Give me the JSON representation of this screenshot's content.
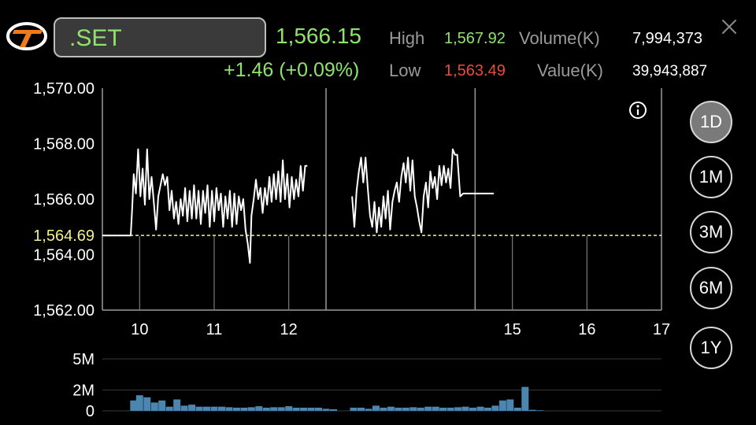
{
  "header": {
    "symbol": ".SET",
    "last_price": "1,566.15",
    "change": "+1.46 (+0.09%)",
    "high_label": "High",
    "high_value": "1,567.92",
    "low_label": "Low",
    "low_value": "1,563.49",
    "volume_label": "Volume(K)",
    "volume_value": "7,994,373",
    "value_label": "Value(K)",
    "value_value": "39,943,887"
  },
  "icons": {
    "logo": "brand-logo-icon",
    "close": "close-icon",
    "info": "info-icon"
  },
  "colors": {
    "up": "#8fe36c",
    "down": "#e74c3c",
    "prev_close_line": "#f5f08a",
    "volume_bar": "#4a86b0",
    "price_line": "#ffffff"
  },
  "range_buttons": [
    {
      "label": "1D",
      "active": true
    },
    {
      "label": "1M",
      "active": false
    },
    {
      "label": "3M",
      "active": false
    },
    {
      "label": "6M",
      "active": false
    },
    {
      "label": "1Y",
      "active": false
    }
  ],
  "chart_data": {
    "type": "line",
    "y_ticks": [
      "1,570.00",
      "1,568.00",
      "1,566.00",
      "1,564.00",
      "1,562.00"
    ],
    "ylim": [
      1562,
      1570
    ],
    "prev_close_label": "1,564.69",
    "prev_close": 1564.69,
    "x_ticks": [
      "10",
      "11",
      "12",
      "15",
      "16",
      "17"
    ],
    "x_tick_values": [
      10,
      11,
      12,
      15,
      16,
      17
    ],
    "xlim": [
      9.5,
      17
    ],
    "session_breaks": [
      12.5,
      14.5
    ],
    "grid": false,
    "series": [
      {
        "segments": [
          [
            [
              9.5,
              1564.69
            ],
            [
              9.88,
              1564.69
            ],
            [
              9.9,
              1565.7
            ],
            [
              9.92,
              1566.9
            ],
            [
              9.95,
              1566.2
            ],
            [
              9.98,
              1567.8
            ],
            [
              10.01,
              1566.1
            ],
            [
              10.04,
              1567.1
            ],
            [
              10.07,
              1565.8
            ],
            [
              10.1,
              1567.8
            ],
            [
              10.13,
              1566.0
            ],
            [
              10.16,
              1566.8
            ],
            [
              10.19,
              1565.9
            ],
            [
              10.22,
              1564.9
            ],
            [
              10.25,
              1566.1
            ],
            [
              10.28,
              1566.5
            ],
            [
              10.31,
              1566.9
            ],
            [
              10.34,
              1566.5
            ],
            [
              10.37,
              1566.8
            ],
            [
              10.4,
              1565.6
            ],
            [
              10.43,
              1566.3
            ],
            [
              10.46,
              1565.3
            ],
            [
              10.49,
              1565.9
            ],
            [
              10.52,
              1565.1
            ],
            [
              10.55,
              1566.0
            ],
            [
              10.58,
              1565.4
            ],
            [
              10.61,
              1566.4
            ],
            [
              10.64,
              1565.2
            ],
            [
              10.67,
              1566.3
            ],
            [
              10.7,
              1565.3
            ],
            [
              10.73,
              1566.5
            ],
            [
              10.76,
              1565.3
            ],
            [
              10.79,
              1566.3
            ],
            [
              10.82,
              1565.1
            ],
            [
              10.85,
              1566.3
            ],
            [
              10.88,
              1565.5
            ],
            [
              10.91,
              1566.5
            ],
            [
              10.94,
              1565.0
            ],
            [
              10.97,
              1566.3
            ],
            [
              11.0,
              1565.2
            ],
            [
              11.03,
              1566.4
            ],
            [
              11.06,
              1565.6
            ],
            [
              11.09,
              1566.2
            ],
            [
              11.12,
              1565.0
            ],
            [
              11.15,
              1566.1
            ],
            [
              11.18,
              1565.3
            ],
            [
              11.21,
              1566.3
            ],
            [
              11.24,
              1565.0
            ],
            [
              11.27,
              1566.2
            ],
            [
              11.3,
              1565.1
            ],
            [
              11.33,
              1566.1
            ],
            [
              11.36,
              1565.6
            ],
            [
              11.39,
              1566.0
            ],
            [
              11.42,
              1564.9
            ],
            [
              11.45,
              1564.4
            ],
            [
              11.48,
              1563.7
            ],
            [
              11.5,
              1565.4
            ],
            [
              11.53,
              1566.0
            ],
            [
              11.56,
              1566.7
            ],
            [
              11.59,
              1566.0
            ],
            [
              11.62,
              1566.4
            ],
            [
              11.65,
              1565.5
            ],
            [
              11.68,
              1566.4
            ],
            [
              11.71,
              1565.8
            ],
            [
              11.74,
              1566.8
            ],
            [
              11.77,
              1565.9
            ],
            [
              11.8,
              1566.9
            ],
            [
              11.83,
              1566.0
            ],
            [
              11.86,
              1567.0
            ],
            [
              11.89,
              1565.9
            ],
            [
              11.92,
              1567.4
            ],
            [
              11.95,
              1566.0
            ],
            [
              11.98,
              1566.9
            ],
            [
              12.01,
              1565.7
            ],
            [
              12.04,
              1566.8
            ],
            [
              12.07,
              1566.0
            ],
            [
              12.1,
              1566.7
            ],
            [
              12.13,
              1566.1
            ],
            [
              12.16,
              1567.2
            ],
            [
              12.19,
              1566.3
            ],
            [
              12.22,
              1567.2
            ],
            [
              12.25,
              1567.2
            ]
          ],
          [
            [
              12.85,
              1566.1
            ],
            [
              12.88,
              1565.0
            ],
            [
              12.91,
              1566.3
            ],
            [
              12.94,
              1567.0
            ],
            [
              12.97,
              1567.5
            ],
            [
              13.0,
              1566.6
            ],
            [
              13.03,
              1567.5
            ],
            [
              13.06,
              1566.4
            ],
            [
              13.09,
              1565.4
            ],
            [
              13.12,
              1565.0
            ],
            [
              13.15,
              1565.9
            ],
            [
              13.18,
              1564.8
            ],
            [
              13.21,
              1565.7
            ],
            [
              13.24,
              1565.0
            ],
            [
              13.27,
              1566.1
            ],
            [
              13.3,
              1565.3
            ],
            [
              13.33,
              1566.3
            ],
            [
              13.36,
              1564.9
            ],
            [
              13.39,
              1565.9
            ],
            [
              13.42,
              1566.3
            ],
            [
              13.45,
              1566.6
            ],
            [
              13.48,
              1565.9
            ],
            [
              13.51,
              1566.8
            ],
            [
              13.54,
              1567.3
            ],
            [
              13.57,
              1566.6
            ],
            [
              13.6,
              1567.5
            ],
            [
              13.63,
              1566.3
            ],
            [
              13.66,
              1567.4
            ],
            [
              13.69,
              1566.1
            ],
            [
              13.72,
              1565.7
            ],
            [
              13.75,
              1565.2
            ],
            [
              13.78,
              1564.8
            ],
            [
              13.81,
              1566.1
            ],
            [
              13.84,
              1566.6
            ],
            [
              13.87,
              1565.7
            ],
            [
              13.9,
              1567.0
            ],
            [
              13.93,
              1566.4
            ],
            [
              13.96,
              1566.8
            ],
            [
              13.99,
              1566.0
            ],
            [
              14.02,
              1567.2
            ],
            [
              14.05,
              1566.5
            ],
            [
              14.08,
              1567.2
            ],
            [
              14.11,
              1566.6
            ],
            [
              14.14,
              1567.1
            ],
            [
              14.17,
              1566.4
            ],
            [
              14.2,
              1567.8
            ],
            [
              14.23,
              1567.6
            ],
            [
              14.26,
              1567.6
            ],
            [
              14.3,
              1566.1
            ],
            [
              14.34,
              1566.2
            ],
            [
              14.4,
              1566.2
            ],
            [
              14.5,
              1566.2
            ],
            [
              14.6,
              1566.2
            ],
            [
              14.75,
              1566.2
            ]
          ]
        ]
      }
    ],
    "volume": {
      "y_ticks": [
        "5M",
        "2M",
        "0"
      ],
      "ylim": [
        0,
        5
      ],
      "bars": [
        [
          9.92,
          1.0
        ],
        [
          10.0,
          1.5
        ],
        [
          10.1,
          1.3
        ],
        [
          10.2,
          0.8
        ],
        [
          10.3,
          1.0
        ],
        [
          10.4,
          0.4
        ],
        [
          10.5,
          1.1
        ],
        [
          10.6,
          0.5
        ],
        [
          10.7,
          0.6
        ],
        [
          10.8,
          0.4
        ],
        [
          10.9,
          0.4
        ],
        [
          11.0,
          0.4
        ],
        [
          11.1,
          0.4
        ],
        [
          11.2,
          0.35
        ],
        [
          11.3,
          0.3
        ],
        [
          11.4,
          0.3
        ],
        [
          11.5,
          0.35
        ],
        [
          11.6,
          0.45
        ],
        [
          11.7,
          0.3
        ],
        [
          11.8,
          0.35
        ],
        [
          11.9,
          0.35
        ],
        [
          12.0,
          0.45
        ],
        [
          12.1,
          0.3
        ],
        [
          12.2,
          0.3
        ],
        [
          12.3,
          0.3
        ],
        [
          12.4,
          0.3
        ],
        [
          12.5,
          0.2
        ],
        [
          12.6,
          0.15
        ],
        [
          12.87,
          0.3
        ],
        [
          12.97,
          0.3
        ],
        [
          13.07,
          0.2
        ],
        [
          13.17,
          0.5
        ],
        [
          13.27,
          0.3
        ],
        [
          13.37,
          0.4
        ],
        [
          13.47,
          0.3
        ],
        [
          13.57,
          0.3
        ],
        [
          13.67,
          0.35
        ],
        [
          13.77,
          0.3
        ],
        [
          13.87,
          0.4
        ],
        [
          13.97,
          0.4
        ],
        [
          14.07,
          0.3
        ],
        [
          14.17,
          0.3
        ],
        [
          14.27,
          0.35
        ],
        [
          14.37,
          0.4
        ],
        [
          14.47,
          0.3
        ],
        [
          14.57,
          0.4
        ],
        [
          14.67,
          0.3
        ],
        [
          14.77,
          0.5
        ],
        [
          14.87,
          1.0
        ],
        [
          14.97,
          1.1
        ],
        [
          15.07,
          0.3
        ],
        [
          15.17,
          2.3
        ],
        [
          15.27,
          0.1
        ],
        [
          15.37,
          0.05
        ]
      ]
    }
  }
}
